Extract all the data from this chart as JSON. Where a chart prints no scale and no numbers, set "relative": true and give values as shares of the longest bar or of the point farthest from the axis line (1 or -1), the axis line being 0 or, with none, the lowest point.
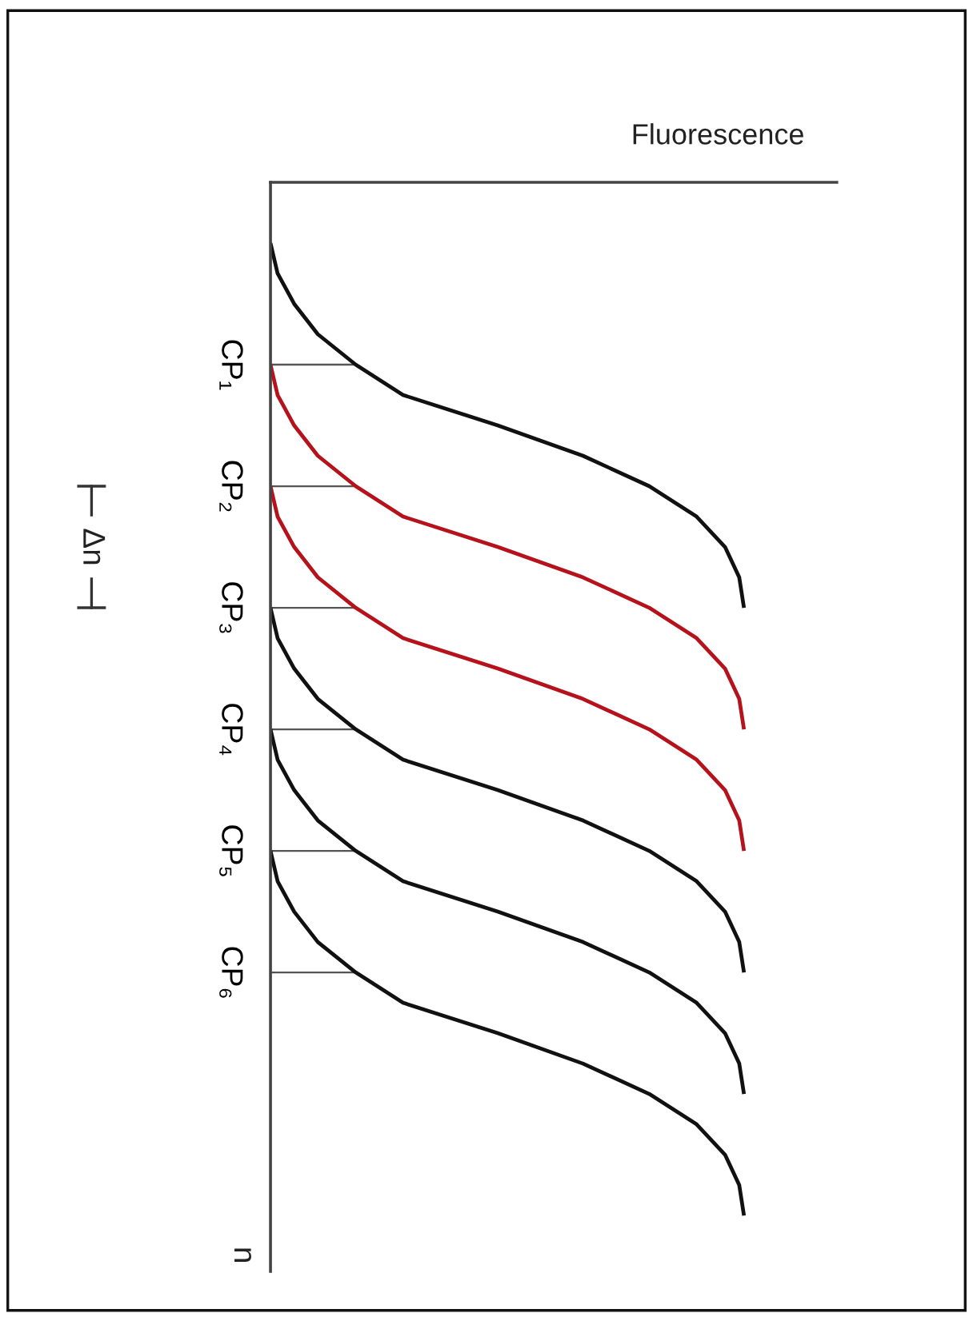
{
  "chart_data": {
    "type": "line",
    "orientation": "horizontal",
    "relative": true,
    "xlabel": "Fluorescence",
    "ylabel": "n",
    "tick_labels": "y",
    "grid": false,
    "annotations": [
      "Δn"
    ],
    "categories": [
      null,
      null,
      null,
      null,
      null,
      null,
      "CP₁",
      null,
      null,
      null,
      "CP₂",
      null,
      null,
      null,
      "CP₃",
      null,
      null,
      null,
      "CP₄",
      null,
      null,
      null,
      "CP₅",
      null,
      null,
      null,
      "CP₆",
      null,
      null,
      null,
      null,
      null,
      null,
      null,
      null,
      null
    ],
    "series": [
      {
        "color": "#111111",
        "values": [
          null,
          null,
          0,
          0.015,
          0.05,
          0.1,
          0.18,
          0.28,
          0.48,
          0.66,
          0.8,
          0.9,
          0.96,
          0.99,
          1,
          null,
          null,
          null,
          null,
          null,
          null,
          null,
          null,
          null,
          null,
          null,
          null,
          null,
          null,
          null,
          null,
          null,
          null,
          null,
          null,
          null
        ]
      },
      {
        "color": "#b5121b",
        "values": [
          null,
          null,
          null,
          null,
          null,
          null,
          0,
          0.015,
          0.05,
          0.1,
          0.18,
          0.28,
          0.48,
          0.66,
          0.8,
          0.9,
          0.96,
          0.99,
          1,
          null,
          null,
          null,
          null,
          null,
          null,
          null,
          null,
          null,
          null,
          null,
          null,
          null,
          null,
          null,
          null,
          null
        ]
      },
      {
        "color": "#b5121b",
        "values": [
          null,
          null,
          null,
          null,
          null,
          null,
          null,
          null,
          null,
          null,
          0,
          0.015,
          0.05,
          0.1,
          0.18,
          0.28,
          0.48,
          0.66,
          0.8,
          0.9,
          0.96,
          0.99,
          1,
          null,
          null,
          null,
          null,
          null,
          null,
          null,
          null,
          null,
          null,
          null,
          null,
          null
        ]
      },
      {
        "color": "#111111",
        "values": [
          null,
          null,
          null,
          null,
          null,
          null,
          null,
          null,
          null,
          null,
          null,
          null,
          null,
          null,
          0,
          0.015,
          0.05,
          0.1,
          0.18,
          0.28,
          0.48,
          0.66,
          0.8,
          0.9,
          0.96,
          0.99,
          1,
          null,
          null,
          null,
          null,
          null,
          null,
          null,
          null,
          null
        ]
      },
      {
        "color": "#111111",
        "values": [
          null,
          null,
          null,
          null,
          null,
          null,
          null,
          null,
          null,
          null,
          null,
          null,
          null,
          null,
          null,
          null,
          null,
          null,
          0,
          0.015,
          0.05,
          0.1,
          0.18,
          0.28,
          0.48,
          0.66,
          0.8,
          0.9,
          0.96,
          0.99,
          1,
          null,
          null,
          null,
          null,
          null
        ]
      },
      {
        "color": "#111111",
        "values": [
          null,
          null,
          null,
          null,
          null,
          null,
          null,
          null,
          null,
          null,
          null,
          null,
          null,
          null,
          null,
          null,
          null,
          null,
          null,
          null,
          null,
          null,
          0,
          0.015,
          0.05,
          0.1,
          0.18,
          0.28,
          0.48,
          0.66,
          0.8,
          0.9,
          0.96,
          0.99,
          1,
          null
        ]
      },
      {
        "type": "bar",
        "color": "#555555",
        "values": [
          null,
          null,
          null,
          null,
          null,
          null,
          0.18,
          null,
          null,
          null,
          0.18,
          null,
          null,
          null,
          0.18,
          null,
          null,
          null,
          0.18,
          null,
          null,
          null,
          0.18,
          null,
          null,
          null,
          0.18,
          null,
          null,
          null,
          null,
          null,
          null,
          null,
          null,
          null
        ]
      }
    ]
  }
}
